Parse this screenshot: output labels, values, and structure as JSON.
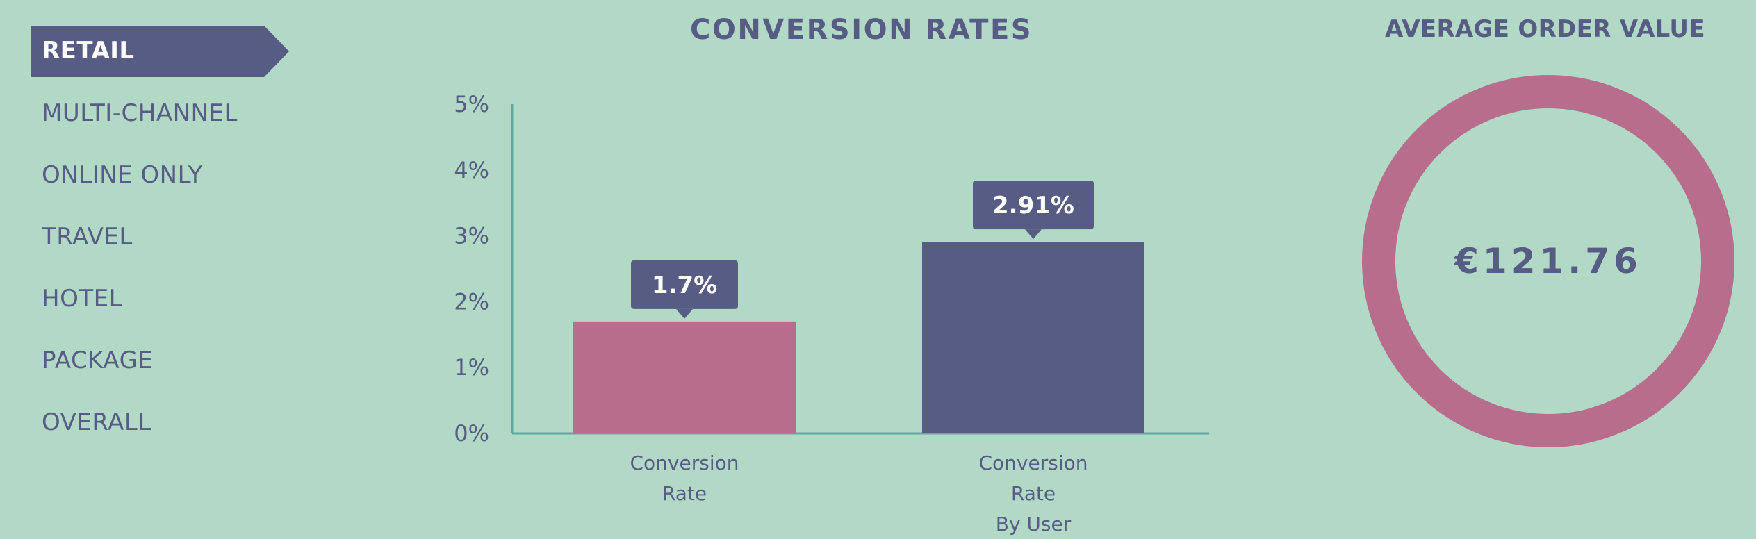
{
  "nav": {
    "active": "RETAIL",
    "items": [
      "MULTI-CHANNEL",
      "ONLINE ONLY",
      "TRAVEL",
      "HOTEL",
      "PACKAGE",
      "OVERALL"
    ]
  },
  "chart_data": {
    "type": "bar",
    "title": "CONVERSION RATES",
    "categories": [
      [
        "Conversion",
        "Rate"
      ],
      [
        "Conversion",
        "Rate",
        "By User"
      ]
    ],
    "values": [
      1.7,
      2.91
    ],
    "value_labels": [
      "1.7%",
      "2.91%"
    ],
    "colors": [
      "#b86d8d",
      "#565c83"
    ],
    "ylim": [
      0,
      5
    ],
    "yticks": [
      "0%",
      "1%",
      "2%",
      "3%",
      "4%",
      "5%"
    ],
    "grid": false
  },
  "aov": {
    "title": "AVERAGE ORDER VALUE",
    "value": "€121.76"
  },
  "colors": {
    "background": "#b2d9c6",
    "navy": "#565c83",
    "pink": "#b86d8d",
    "axis": "#5fa8a0"
  }
}
